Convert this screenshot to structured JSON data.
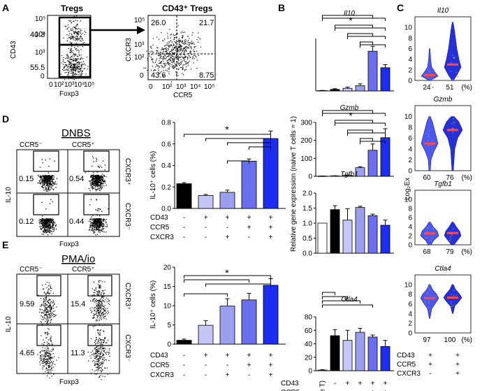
{
  "panels": {
    "A": "A",
    "B": "B",
    "C": "C",
    "D": "D",
    "E": "E"
  },
  "colors": {
    "black": "#000000",
    "white": "#ffffff",
    "light": "#c4c6f6",
    "mid": "#9c9ff0",
    "deep": "#6a6ff0",
    "blue": "#1d2df0",
    "violin": "#3f3fe8",
    "median": "#ff4a4a",
    "dot": "#8a8a8a"
  },
  "flow": {
    "tregs_title": "Tregs",
    "cd43_tregs_title": "CD43⁺ Tregs",
    "tregs_y": "CD43",
    "tregs_x": "Foxp3",
    "tregs_gate_top": "40.3",
    "tregs_gate_bottom": "55.5",
    "q_y": "CXCR3",
    "q_x": "CCR5",
    "quadrants": [
      "26.0",
      "21.7",
      "43.6",
      "8.75"
    ],
    "log_ticks_y": [
      "10⁵",
      "10⁴",
      "10³",
      "0"
    ],
    "log_ticks_x_a": [
      "0",
      "10²",
      "10³",
      "10⁴",
      "10⁵"
    ],
    "log_ticks_y_q": [
      "10⁵",
      "10³",
      "10²",
      "0"
    ],
    "log_ticks_x_q": [
      "0",
      "10²",
      "10³",
      "10⁴",
      "10⁵"
    ]
  },
  "dnbs": {
    "title": "DNBS",
    "ccr5_neg": "CCR5⁻",
    "ccr5_pos": "CCR5⁺",
    "cxcr3_pos": "CXCR3⁺",
    "cxcr3_neg": "CXCR3⁻",
    "ylabel": "IL-10",
    "xlabel": "Foxp3",
    "gates": [
      "0.15",
      "0.54",
      "0.12",
      "0.44"
    ]
  },
  "pmaio": {
    "title": "PMA/io",
    "ccr5_neg": "CCR5⁻",
    "ccr5_pos": "CCR5⁺",
    "cxcr3_pos": "CXCR3⁺",
    "cxcr3_neg": "CXCR3⁻",
    "ylabel": "IL-10",
    "xlabel": "Foxp3",
    "gates": [
      "9.59",
      "15.4",
      "4.65",
      "11.3"
    ]
  },
  "star": "*",
  "table": {
    "row_labels": [
      "CD43",
      "CCR5",
      "CXCR3"
    ],
    "five": [
      [
        "-",
        "+",
        "+",
        "+",
        "+"
      ],
      [
        "-",
        "-",
        "-",
        "+",
        "+"
      ],
      [
        "-",
        "-",
        "+",
        "-",
        "+"
      ]
    ],
    "six": [
      [
        "(Naive T)",
        "-",
        "+",
        "+",
        "+",
        "+"
      ],
      [
        "",
        "-",
        "-",
        "-",
        "+",
        "+"
      ],
      [
        "",
        "-",
        "-",
        "+",
        "-",
        "+"
      ]
    ],
    "two": [
      [
        "+",
        "+"
      ],
      [
        "+",
        "+"
      ],
      [
        "-",
        "+"
      ]
    ]
  },
  "violin": {
    "ylabel": "Log₂Ex",
    "pct": "(%)"
  },
  "chart_data": [
    {
      "id": "D",
      "type": "bar",
      "title": "",
      "ylabel": "IL-10⁺ cells (%)",
      "ylim": [
        0,
        0.8
      ],
      "yticks": [
        "0.0",
        "0.2",
        "0.4",
        "0.6",
        "0.8"
      ],
      "values": [
        0.23,
        0.12,
        0.15,
        0.44,
        0.65
      ],
      "errors": [
        0.01,
        0.01,
        0.02,
        0.02,
        0.07
      ]
    },
    {
      "id": "E",
      "type": "bar",
      "title": "",
      "ylabel": "IL-10⁺ cells (%)",
      "ylim": [
        0,
        20
      ],
      "yticks": [
        "0",
        "5",
        "10",
        "15",
        "20"
      ],
      "values": [
        1.0,
        4.9,
        9.9,
        11.5,
        15.3
      ],
      "errors": [
        0.3,
        1.2,
        1.9,
        1.7,
        1.7
      ]
    },
    {
      "id": "B-Il10",
      "type": "bar",
      "gene": "Il10",
      "ylim": [
        0,
        140
      ],
      "yticks": [],
      "values": [
        1,
        4,
        7,
        14,
        106,
        62
      ],
      "errors": [
        0.5,
        2,
        3,
        5,
        13,
        8
      ]
    },
    {
      "id": "B-Gzmb",
      "type": "bar",
      "gene": "Gzmb",
      "ylim": [
        0,
        300
      ],
      "yticks": [
        "0",
        "100",
        "200",
        "300"
      ],
      "values": [
        1,
        2,
        5,
        48,
        145,
        215
      ],
      "errors": [
        0.5,
        1,
        2,
        5,
        35,
        50
      ]
    },
    {
      "id": "B-Tgfb1",
      "type": "bar",
      "gene": "Tgfb1",
      "ylim": [
        0,
        2.0
      ],
      "yticks": [
        "0.0",
        "0.5",
        "1.0",
        "1.5",
        "2.0"
      ],
      "values": [
        1.0,
        1.45,
        1.1,
        1.52,
        1.25,
        0.93
      ],
      "errors": [
        0,
        0.13,
        0.38,
        0.04,
        0.05,
        0.17
      ]
    },
    {
      "id": "B-Ctla4",
      "type": "bar",
      "gene": "Ctla4",
      "ylim": [
        0,
        80
      ],
      "yticks": [
        "0",
        "20",
        "40",
        "60",
        "80"
      ],
      "values": [
        1,
        52,
        45,
        57,
        50,
        36
      ],
      "errors": [
        0.5,
        9,
        15,
        6,
        3,
        9
      ]
    },
    {
      "id": "B-ylabel",
      "type": "label",
      "ylabel": "Relative gene expression (naive T cells = 1)"
    },
    {
      "id": "C",
      "type": "violin",
      "ylim": [
        0,
        12
      ],
      "yticks": [
        "0",
        "2",
        "4",
        "6",
        "8",
        "10"
      ],
      "genes": [
        {
          "gene": "Il10",
          "medians": [
            1,
            3
          ],
          "pcts": [
            "24",
            "51"
          ]
        },
        {
          "gene": "Gzmb",
          "medians": [
            5,
            7.5
          ],
          "pcts": [
            "60",
            "76"
          ]
        },
        {
          "gene": "Tgfb1",
          "medians": [
            2.5,
            2.6
          ],
          "pcts": [
            "68",
            "79"
          ]
        },
        {
          "gene": "Ctla4",
          "medians": [
            7.2,
            7.3
          ],
          "pcts": [
            "97",
            "100"
          ]
        }
      ]
    }
  ]
}
